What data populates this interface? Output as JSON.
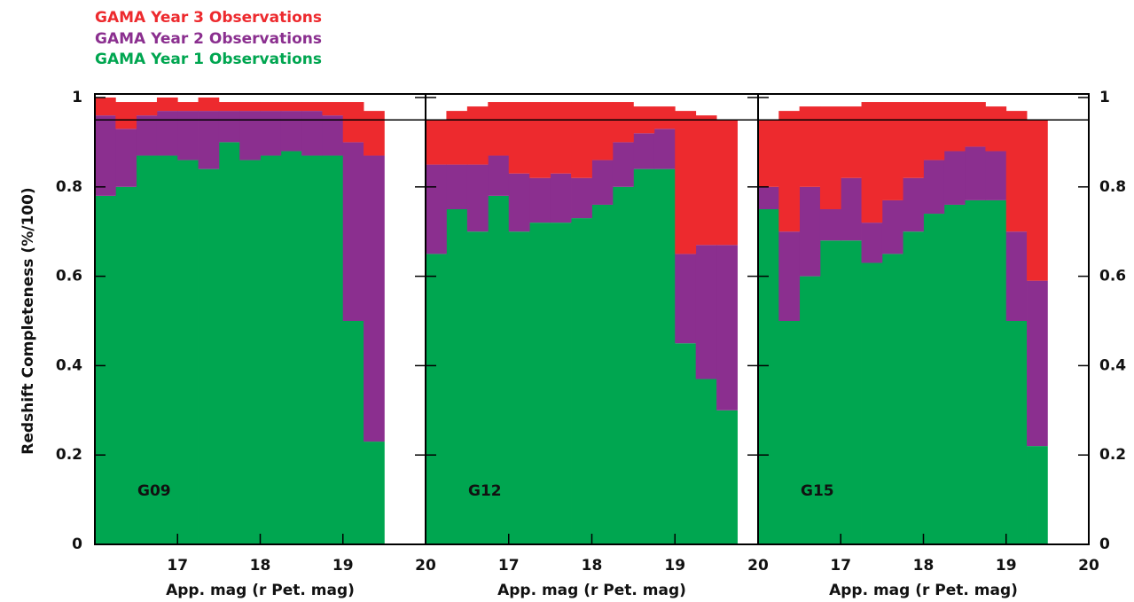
{
  "chart_data": [
    {
      "type": "histogram",
      "label": "G09",
      "xlabel": "App. mag (r Pet. mag)",
      "ylabel": "Redshift Completeness (%/100)",
      "bins": [
        16.0,
        16.25,
        16.5,
        16.75,
        17.0,
        17.25,
        17.5,
        17.75,
        18.0,
        18.25,
        18.5,
        18.75,
        19.0,
        19.25,
        19.5
      ],
      "series": [
        {
          "name": "GAMA Year 1 Observations",
          "color": "#00a650",
          "values": [
            0.78,
            0.8,
            0.87,
            0.87,
            0.86,
            0.84,
            0.9,
            0.86,
            0.87,
            0.88,
            0.87,
            0.87,
            0.5,
            0.23
          ]
        },
        {
          "name": "GAMA Year 2 Observations",
          "color": "#8b2f8f",
          "values": [
            0.18,
            0.13,
            0.09,
            0.1,
            0.11,
            0.13,
            0.07,
            0.11,
            0.1,
            0.09,
            0.1,
            0.09,
            0.4,
            0.64
          ]
        },
        {
          "name": "GAMA Year 3 Observations",
          "color": "#ed2a2e",
          "values": [
            0.04,
            0.06,
            0.03,
            0.03,
            0.02,
            0.03,
            0.02,
            0.02,
            0.02,
            0.02,
            0.02,
            0.03,
            0.09,
            0.1
          ]
        }
      ],
      "xlim": [
        16,
        20
      ],
      "ylim": [
        0,
        1
      ],
      "xticks": [
        17,
        18,
        19,
        20
      ],
      "yticks": [
        0,
        0.2,
        0.4,
        0.6,
        0.8,
        1
      ],
      "hline": 0.95
    },
    {
      "type": "histogram",
      "label": "G12",
      "xlabel": "App. mag (r Pet. mag)",
      "bins": [
        16.0,
        16.25,
        16.5,
        16.75,
        17.0,
        17.25,
        17.5,
        17.75,
        18.0,
        18.25,
        18.5,
        18.75,
        19.0,
        19.25,
        19.5,
        19.75
      ],
      "series": [
        {
          "color": "#00a650",
          "values": [
            0.65,
            0.75,
            0.7,
            0.78,
            0.7,
            0.72,
            0.72,
            0.73,
            0.76,
            0.8,
            0.84,
            0.84,
            0.45,
            0.37,
            0.3
          ]
        },
        {
          "color": "#8b2f8f",
          "values": [
            0.2,
            0.1,
            0.15,
            0.09,
            0.13,
            0.1,
            0.11,
            0.09,
            0.1,
            0.1,
            0.08,
            0.09,
            0.2,
            0.3,
            0.37
          ]
        },
        {
          "color": "#ed2a2e",
          "values": [
            0.1,
            0.12,
            0.13,
            0.12,
            0.16,
            0.17,
            0.16,
            0.17,
            0.13,
            0.09,
            0.06,
            0.05,
            0.32,
            0.29,
            0.28
          ]
        }
      ],
      "xlim": [
        16,
        20
      ],
      "ylim": [
        0,
        1
      ],
      "xticks": [
        17,
        18,
        19,
        20
      ],
      "yticks": [
        0,
        0.2,
        0.4,
        0.6,
        0.8,
        1
      ],
      "hline": 0.95
    },
    {
      "type": "histogram",
      "label": "G15",
      "xlabel": "App. mag (r Pet. mag)",
      "bins": [
        16.0,
        16.25,
        16.5,
        16.75,
        17.0,
        17.25,
        17.5,
        17.75,
        18.0,
        18.25,
        18.5,
        18.75,
        19.0,
        19.25,
        19.5
      ],
      "series": [
        {
          "color": "#00a650",
          "values": [
            0.75,
            0.5,
            0.6,
            0.68,
            0.68,
            0.63,
            0.65,
            0.7,
            0.74,
            0.76,
            0.77,
            0.77,
            0.5,
            0.22
          ]
        },
        {
          "color": "#8b2f8f",
          "values": [
            0.05,
            0.2,
            0.2,
            0.07,
            0.14,
            0.09,
            0.12,
            0.12,
            0.12,
            0.12,
            0.12,
            0.11,
            0.2,
            0.37
          ]
        },
        {
          "color": "#ed2a2e",
          "values": [
            0.15,
            0.27,
            0.18,
            0.23,
            0.16,
            0.27,
            0.22,
            0.17,
            0.13,
            0.11,
            0.1,
            0.1,
            0.27,
            0.36
          ]
        }
      ],
      "xlim": [
        16,
        20
      ],
      "ylim": [
        0,
        1
      ],
      "xticks": [
        17,
        18,
        19,
        20
      ],
      "yticks": [
        0,
        0.2,
        0.4,
        0.6,
        0.8,
        1
      ],
      "hline": 0.95
    }
  ]
}
